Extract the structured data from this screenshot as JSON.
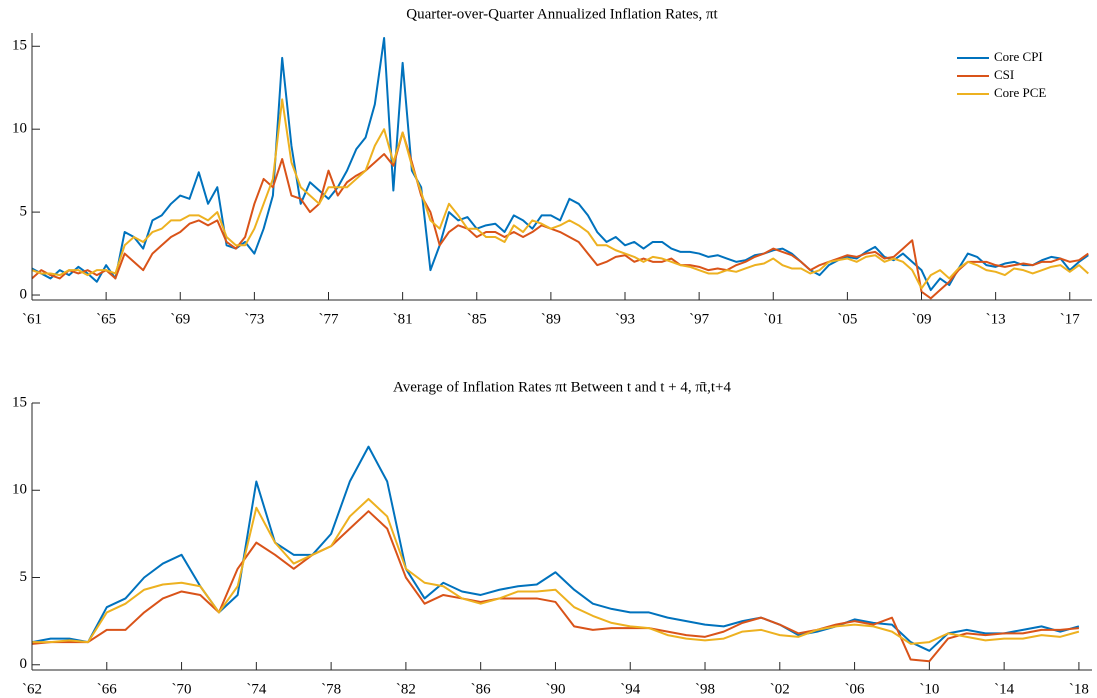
{
  "chart_data": [
    {
      "type": "line",
      "title": "Quarter-over-Quarter Annualized Inflation Rates, πt",
      "legend": "top-right",
      "xlim": [
        1961,
        2018.2
      ],
      "ylim": [
        -0.3,
        15.8
      ],
      "yticks": [
        0,
        5,
        10,
        15
      ],
      "xticks": [
        {
          "value": 1961,
          "label": "`61"
        },
        {
          "value": 1965,
          "label": "`65"
        },
        {
          "value": 1969,
          "label": "`69"
        },
        {
          "value": 1973,
          "label": "`73"
        },
        {
          "value": 1977,
          "label": "`77"
        },
        {
          "value": 1981,
          "label": "`81"
        },
        {
          "value": 1985,
          "label": "`85"
        },
        {
          "value": 1989,
          "label": "`89"
        },
        {
          "value": 1993,
          "label": "`93"
        },
        {
          "value": 1997,
          "label": "`97"
        },
        {
          "value": 2001,
          "label": "`01"
        },
        {
          "value": 2005,
          "label": "`05"
        },
        {
          "value": 2009,
          "label": "`09"
        },
        {
          "value": 2013,
          "label": "`13"
        },
        {
          "value": 2017,
          "label": "`17"
        }
      ],
      "x": [
        1961,
        1961.5,
        1962,
        1962.5,
        1963,
        1963.5,
        1964,
        1964.5,
        1965,
        1965.5,
        1966,
        1966.5,
        1967,
        1967.5,
        1968,
        1968.5,
        1969,
        1969.5,
        1970,
        1970.5,
        1971,
        1971.5,
        1972,
        1972.5,
        1973,
        1973.5,
        1974,
        1974.5,
        1975,
        1975.5,
        1976,
        1976.5,
        1977,
        1977.5,
        1978,
        1978.5,
        1979,
        1979.5,
        1980,
        1980.5,
        1981,
        1981.5,
        1982,
        1982.5,
        1983,
        1983.5,
        1984,
        1984.5,
        1985,
        1985.5,
        1986,
        1986.5,
        1987,
        1987.5,
        1988,
        1988.5,
        1989,
        1989.5,
        1990,
        1990.5,
        1991,
        1991.5,
        1992,
        1992.5,
        1993,
        1993.5,
        1994,
        1994.5,
        1995,
        1995.5,
        1996,
        1996.5,
        1997,
        1997.5,
        1998,
        1998.5,
        1999,
        1999.5,
        2000,
        2000.5,
        2001,
        2001.5,
        2002,
        2002.5,
        2003,
        2003.5,
        2004,
        2004.5,
        2005,
        2005.5,
        2006,
        2006.5,
        2007,
        2007.5,
        2008,
        2008.5,
        2009,
        2009.5,
        2010,
        2010.5,
        2011,
        2011.5,
        2012,
        2012.5,
        2013,
        2013.5,
        2014,
        2014.5,
        2015,
        2015.5,
        2016,
        2016.5,
        2017,
        2017.5,
        2018
      ],
      "series": [
        {
          "name": "Core CPI",
          "color": "#0072BD",
          "values": [
            1.6,
            1.3,
            1.0,
            1.5,
            1.2,
            1.7,
            1.3,
            0.8,
            1.8,
            1.0,
            3.8,
            3.5,
            2.8,
            4.5,
            4.8,
            5.5,
            6.0,
            5.8,
            7.4,
            5.5,
            6.5,
            3.0,
            2.8,
            3.2,
            2.5,
            4.0,
            6.0,
            14.3,
            9.0,
            5.5,
            6.8,
            6.3,
            5.8,
            6.5,
            7.5,
            8.8,
            9.5,
            11.5,
            15.5,
            6.3,
            14.0,
            7.5,
            6.5,
            1.5,
            3.0,
            5.0,
            4.5,
            4.7,
            4.0,
            4.2,
            4.3,
            3.8,
            4.8,
            4.5,
            4.0,
            4.8,
            4.8,
            4.5,
            5.8,
            5.5,
            4.8,
            3.8,
            3.2,
            3.5,
            3.0,
            3.2,
            2.8,
            3.2,
            3.2,
            2.8,
            2.6,
            2.6,
            2.5,
            2.3,
            2.4,
            2.2,
            2.0,
            2.1,
            2.4,
            2.5,
            2.7,
            2.8,
            2.5,
            2.0,
            1.5,
            1.2,
            1.8,
            2.1,
            2.3,
            2.2,
            2.6,
            2.9,
            2.3,
            2.1,
            2.5,
            2.0,
            1.5,
            0.3,
            1.0,
            0.6,
            1.6,
            2.5,
            2.3,
            1.8,
            1.7,
            1.9,
            2.0,
            1.8,
            1.8,
            2.1,
            2.3,
            2.2,
            1.5,
            2.0,
            2.4
          ]
        },
        {
          "name": "CSI",
          "color": "#D95319",
          "values": [
            1.0,
            1.5,
            1.2,
            1.0,
            1.5,
            1.3,
            1.5,
            1.2,
            1.5,
            1.0,
            2.5,
            2.0,
            1.5,
            2.5,
            3.0,
            3.5,
            3.8,
            4.3,
            4.5,
            4.2,
            4.5,
            3.2,
            2.8,
            3.5,
            5.5,
            7.0,
            6.5,
            8.2,
            6.0,
            5.8,
            5.0,
            5.5,
            7.5,
            6.0,
            6.8,
            7.2,
            7.5,
            8.0,
            8.5,
            7.8,
            9.8,
            8.0,
            6.0,
            5.0,
            3.0,
            3.8,
            4.2,
            4.0,
            3.5,
            3.8,
            3.8,
            3.5,
            3.8,
            3.5,
            3.8,
            4.2,
            4.0,
            3.8,
            3.5,
            3.2,
            2.5,
            1.8,
            2.0,
            2.3,
            2.4,
            2.0,
            2.2,
            2.0,
            2.0,
            2.2,
            1.8,
            1.8,
            1.7,
            1.5,
            1.6,
            1.5,
            1.8,
            2.0,
            2.3,
            2.5,
            2.8,
            2.6,
            2.4,
            2.0,
            1.5,
            1.8,
            2.0,
            2.2,
            2.4,
            2.3,
            2.5,
            2.6,
            2.2,
            2.3,
            2.8,
            3.3,
            0.2,
            -0.2,
            0.3,
            0.8,
            1.5,
            2.0,
            2.0,
            2.0,
            1.8,
            1.7,
            1.8,
            1.9,
            1.8,
            2.0,
            2.0,
            2.2,
            2.0,
            2.1,
            2.5
          ]
        },
        {
          "name": "Core PCE",
          "color": "#EDB120",
          "values": [
            1.5,
            1.3,
            1.3,
            1.2,
            1.5,
            1.5,
            1.2,
            1.5,
            1.5,
            1.3,
            3.0,
            3.5,
            3.2,
            3.8,
            4.0,
            4.5,
            4.5,
            4.8,
            4.8,
            4.5,
            5.0,
            3.5,
            3.0,
            3.0,
            4.0,
            5.5,
            7.0,
            11.8,
            8.0,
            6.5,
            6.0,
            5.5,
            6.5,
            6.5,
            6.5,
            7.0,
            7.5,
            9.0,
            10.0,
            8.0,
            9.8,
            7.8,
            6.2,
            4.5,
            4.0,
            5.5,
            4.8,
            4.0,
            4.0,
            3.5,
            3.5,
            3.2,
            4.2,
            3.8,
            4.5,
            4.3,
            4.0,
            4.2,
            4.5,
            4.2,
            3.8,
            3.0,
            3.0,
            2.7,
            2.5,
            2.3,
            2.0,
            2.3,
            2.2,
            2.0,
            1.8,
            1.7,
            1.5,
            1.3,
            1.3,
            1.5,
            1.4,
            1.6,
            1.8,
            1.9,
            2.2,
            1.8,
            1.6,
            1.6,
            1.3,
            1.5,
            2.0,
            2.1,
            2.2,
            2.0,
            2.3,
            2.4,
            2.0,
            2.2,
            2.0,
            1.5,
            0.4,
            1.2,
            1.5,
            1.0,
            1.6,
            2.0,
            1.8,
            1.5,
            1.4,
            1.2,
            1.6,
            1.5,
            1.3,
            1.5,
            1.7,
            1.8,
            1.4,
            1.8,
            1.3
          ]
        }
      ]
    },
    {
      "type": "line",
      "title": "Average of Inflation Rates πt Between t and t + 4, π̄t,t+4",
      "xlim": [
        1962,
        2018.7
      ],
      "ylim": [
        -0.3,
        15
      ],
      "yticks": [
        0,
        5,
        10,
        15
      ],
      "xticks": [
        {
          "value": 1962,
          "label": "`62"
        },
        {
          "value": 1966,
          "label": "`66"
        },
        {
          "value": 1970,
          "label": "`70"
        },
        {
          "value": 1974,
          "label": "`74"
        },
        {
          "value": 1978,
          "label": "`78"
        },
        {
          "value": 1982,
          "label": "`82"
        },
        {
          "value": 1986,
          "label": "`86"
        },
        {
          "value": 1990,
          "label": "`90"
        },
        {
          "value": 1994,
          "label": "`94"
        },
        {
          "value": 1998,
          "label": "`98"
        },
        {
          "value": 2002,
          "label": "`02"
        },
        {
          "value": 2006,
          "label": "`06"
        },
        {
          "value": 2010,
          "label": "`10"
        },
        {
          "value": 2014,
          "label": "`14"
        },
        {
          "value": 2018,
          "label": "`18"
        }
      ],
      "x": [
        1962,
        1963,
        1964,
        1965,
        1966,
        1967,
        1968,
        1969,
        1970,
        1971,
        1972,
        1973,
        1974,
        1975,
        1976,
        1977,
        1978,
        1979,
        1980,
        1981,
        1982,
        1983,
        1984,
        1985,
        1986,
        1987,
        1988,
        1989,
        1990,
        1991,
        1992,
        1993,
        1994,
        1995,
        1996,
        1997,
        1998,
        1999,
        2000,
        2001,
        2002,
        2003,
        2004,
        2005,
        2006,
        2007,
        2008,
        2009,
        2010,
        2011,
        2012,
        2013,
        2014,
        2015,
        2016,
        2017,
        2018
      ],
      "series": [
        {
          "color": "#0072BD",
          "values": [
            1.3,
            1.5,
            1.5,
            1.3,
            3.3,
            3.8,
            5.0,
            5.8,
            6.3,
            4.5,
            3.0,
            4.0,
            10.5,
            7.0,
            6.3,
            6.3,
            7.5,
            10.5,
            12.5,
            10.5,
            5.5,
            3.8,
            4.7,
            4.2,
            4.0,
            4.3,
            4.5,
            4.6,
            5.3,
            4.3,
            3.5,
            3.2,
            3.0,
            3.0,
            2.7,
            2.5,
            2.3,
            2.2,
            2.5,
            2.7,
            2.3,
            1.7,
            1.9,
            2.2,
            2.6,
            2.4,
            2.3,
            1.3,
            0.8,
            1.8,
            2.0,
            1.8,
            1.8,
            2.0,
            2.2,
            1.9,
            2.2
          ]
        },
        {
          "color": "#D95319",
          "values": [
            1.2,
            1.3,
            1.3,
            1.3,
            2.0,
            2.0,
            3.0,
            3.8,
            4.2,
            4.0,
            3.0,
            5.5,
            7.0,
            6.3,
            5.5,
            6.3,
            6.8,
            7.8,
            8.8,
            7.8,
            5.0,
            3.5,
            4.0,
            3.8,
            3.6,
            3.8,
            3.8,
            3.8,
            3.6,
            2.2,
            2.0,
            2.1,
            2.1,
            2.1,
            1.9,
            1.7,
            1.6,
            1.9,
            2.4,
            2.7,
            2.3,
            1.8,
            2.0,
            2.3,
            2.5,
            2.3,
            2.7,
            0.3,
            0.2,
            1.5,
            1.8,
            1.7,
            1.8,
            1.8,
            2.0,
            2.0,
            2.1
          ]
        },
        {
          "color": "#EDB120",
          "values": [
            1.3,
            1.3,
            1.4,
            1.3,
            3.0,
            3.5,
            4.3,
            4.6,
            4.7,
            4.5,
            3.0,
            4.5,
            9.0,
            7.0,
            5.8,
            6.3,
            6.8,
            8.5,
            9.5,
            8.5,
            5.5,
            4.7,
            4.5,
            3.8,
            3.5,
            3.8,
            4.2,
            4.2,
            4.3,
            3.3,
            2.8,
            2.4,
            2.2,
            2.1,
            1.7,
            1.5,
            1.4,
            1.5,
            1.9,
            2.0,
            1.7,
            1.6,
            2.0,
            2.2,
            2.3,
            2.2,
            1.9,
            1.2,
            1.3,
            1.8,
            1.6,
            1.4,
            1.5,
            1.5,
            1.7,
            1.6,
            1.9
          ]
        }
      ]
    }
  ]
}
